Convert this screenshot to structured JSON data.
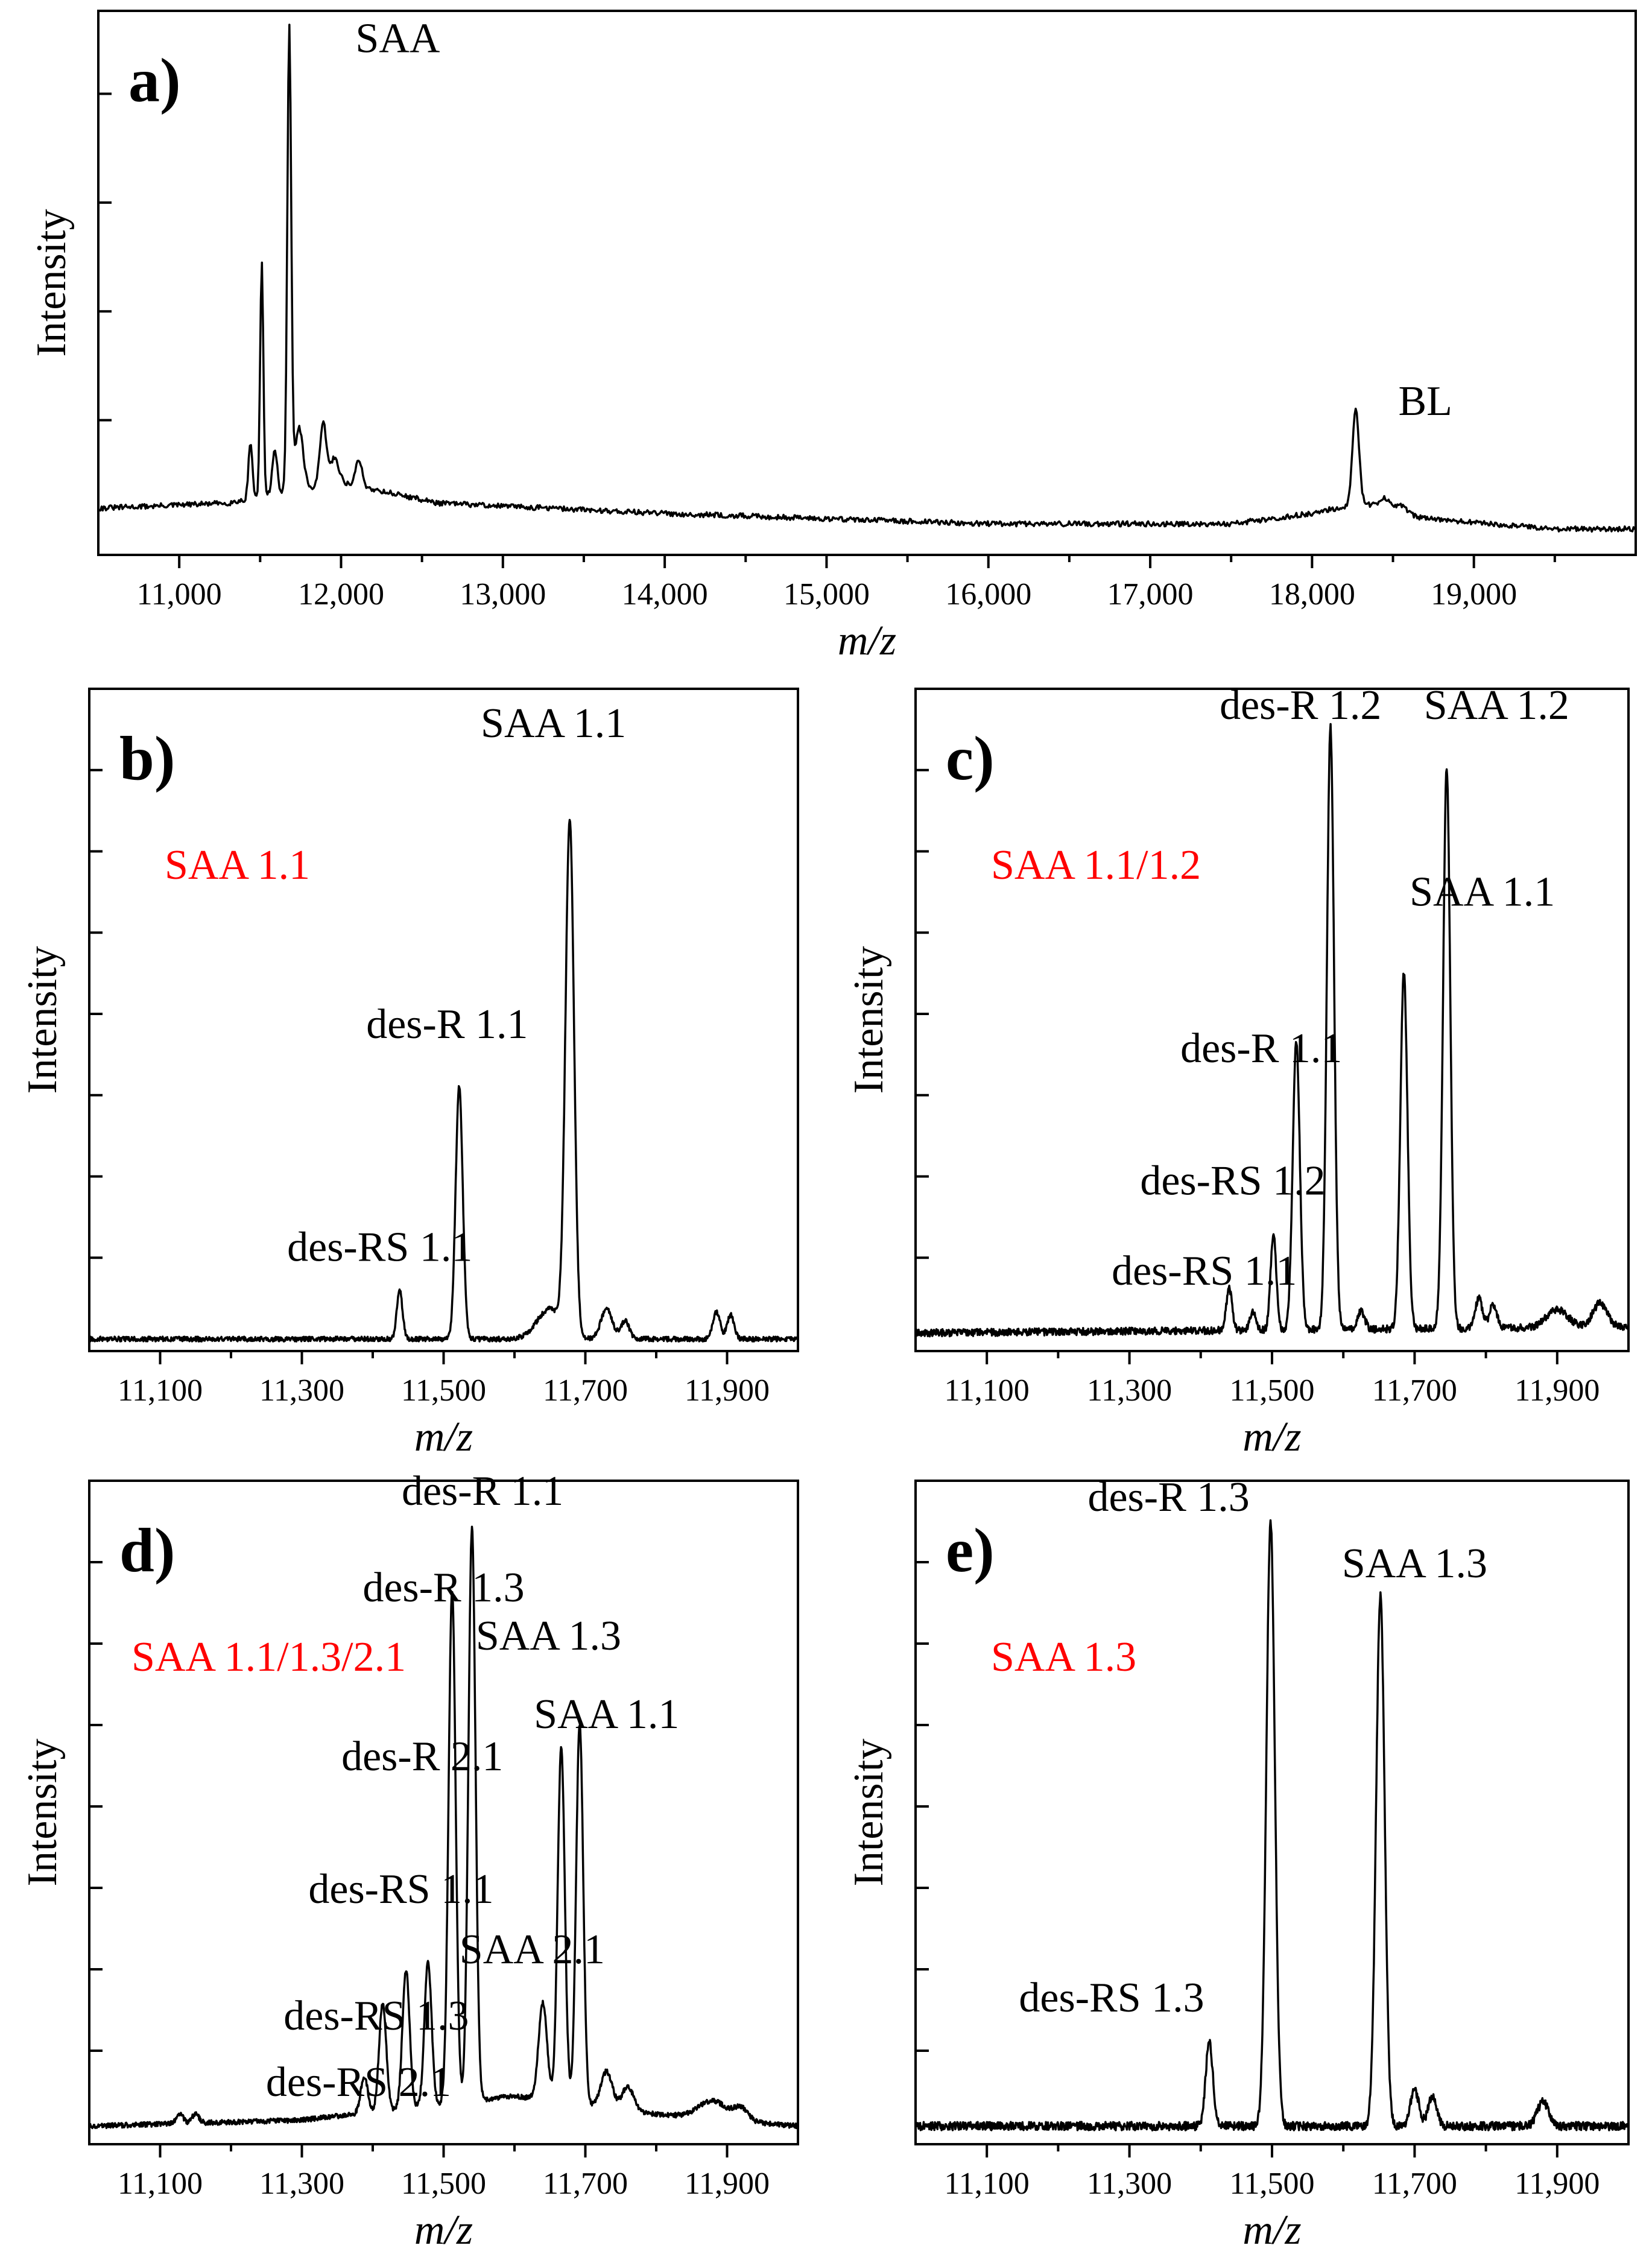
{
  "colors": {
    "sample_label": "#ff0000",
    "trace": "#000000",
    "axes": "#000000"
  },
  "chart_data": [
    {
      "panel": "a)",
      "type": "line",
      "xlabel": "m/z",
      "ylabel": "Intensity",
      "xlim": [
        10500,
        20000
      ],
      "ylim": [
        -0.05,
        1.0
      ],
      "xticks": [
        11000,
        12000,
        13000,
        14000,
        15000,
        16000,
        17000,
        18000,
        19000
      ],
      "xtick_labels": [
        "11,000",
        "12,000",
        "13,000",
        "14,000",
        "15,000",
        "16,000",
        "17,000",
        "18,000",
        "19,000"
      ],
      "baseline": [
        [
          10500,
          0.04
        ],
        [
          11300,
          0.05
        ],
        [
          12000,
          0.09
        ],
        [
          12600,
          0.05
        ],
        [
          14000,
          0.03
        ],
        [
          16000,
          0.01
        ],
        [
          17500,
          0.01
        ],
        [
          18000,
          0.03
        ],
        [
          18300,
          0.05
        ],
        [
          18700,
          0.02
        ],
        [
          19500,
          0.0
        ]
      ],
      "peaks": [
        {
          "x": 11440,
          "h": 0.11,
          "w": 12
        },
        {
          "x": 11510,
          "h": 0.45,
          "w": 10
        },
        {
          "x": 11590,
          "h": 0.09,
          "w": 15
        },
        {
          "x": 11680,
          "h": 0.9,
          "w": 12
        },
        {
          "x": 11740,
          "h": 0.12,
          "w": 25
        },
        {
          "x": 11890,
          "h": 0.12,
          "w": 20
        },
        {
          "x": 11960,
          "h": 0.05,
          "w": 25
        },
        {
          "x": 12110,
          "h": 0.05,
          "w": 20
        },
        {
          "x": 18270,
          "h": 0.18,
          "w": 20
        },
        {
          "x": 18450,
          "h": 0.02,
          "w": 35
        },
        {
          "x": 18550,
          "h": 0.015,
          "w": 30
        }
      ],
      "noise": 0.005,
      "labels": [
        {
          "text": "SAA",
          "x": 12350,
          "y": 0.92
        },
        {
          "text": "BL",
          "x": 18700,
          "y": 0.22
        }
      ],
      "sample_label": ""
    },
    {
      "panel": "b)",
      "type": "line",
      "xlabel": "m/z",
      "ylabel": "Intensity",
      "xlim": [
        11000,
        12000
      ],
      "ylim": [
        -0.02,
        1.08
      ],
      "xticks": [
        11100,
        11300,
        11500,
        11700,
        11900
      ],
      "xtick_labels": [
        "11,100",
        "11,300",
        "11,500",
        "11,700",
        "11,900"
      ],
      "baseline": [
        [
          11000,
          0.0
        ],
        [
          12000,
          0.0
        ]
      ],
      "peaks": [
        {
          "x": 11438,
          "h": 0.08,
          "w": 4
        },
        {
          "x": 11522,
          "h": 0.42,
          "w": 5
        },
        {
          "x": 11678,
          "h": 0.85,
          "w": 6
        },
        {
          "x": 11650,
          "h": 0.05,
          "w": 18
        },
        {
          "x": 11730,
          "h": 0.05,
          "w": 8
        },
        {
          "x": 11756,
          "h": 0.03,
          "w": 6
        },
        {
          "x": 11885,
          "h": 0.045,
          "w": 5
        },
        {
          "x": 11905,
          "h": 0.04,
          "w": 5
        }
      ],
      "noise": 0.004,
      "labels": [
        {
          "text": "SAA 1.1",
          "x": 11655,
          "y": 1.0
        },
        {
          "text": "des-R 1.1",
          "x": 11505,
          "y": 0.5
        },
        {
          "text": "des-RS 1.1",
          "x": 11410,
          "y": 0.13
        }
      ],
      "sample_label": "SAA 1.1"
    },
    {
      "panel": "c)",
      "type": "line",
      "xlabel": "m/z",
      "ylabel": "Intensity",
      "xlim": [
        11000,
        12000
      ],
      "ylim": [
        -0.02,
        1.08
      ],
      "xticks": [
        11100,
        11300,
        11500,
        11700,
        11900
      ],
      "xtick_labels": [
        "11,100",
        "11,300",
        "11,500",
        "11,700",
        "11,900"
      ],
      "baseline": [
        [
          11000,
          0.01
        ],
        [
          12000,
          0.02
        ]
      ],
      "peaks": [
        {
          "x": 11440,
          "h": 0.07,
          "w": 4
        },
        {
          "x": 11473,
          "h": 0.03,
          "w": 4
        },
        {
          "x": 11502,
          "h": 0.16,
          "w": 4
        },
        {
          "x": 11534,
          "h": 0.48,
          "w": 5
        },
        {
          "x": 11582,
          "h": 1.0,
          "w": 5
        },
        {
          "x": 11625,
          "h": 0.03,
          "w": 5
        },
        {
          "x": 11685,
          "h": 0.59,
          "w": 5
        },
        {
          "x": 11745,
          "h": 0.93,
          "w": 5
        },
        {
          "x": 11790,
          "h": 0.05,
          "w": 5
        },
        {
          "x": 11810,
          "h": 0.04,
          "w": 5
        },
        {
          "x": 11900,
          "h": 0.03,
          "w": 15
        },
        {
          "x": 11960,
          "h": 0.04,
          "w": 10
        }
      ],
      "noise": 0.006,
      "labels": [
        {
          "text": "des-R 1.2",
          "x": 11540,
          "y": 1.03
        },
        {
          "text": "SAA 1.2",
          "x": 11815,
          "y": 1.03
        },
        {
          "text": "SAA 1.1",
          "x": 11795,
          "y": 0.72
        },
        {
          "text": "des-R 1.1",
          "x": 11485,
          "y": 0.46
        },
        {
          "text": "des-RS 1.2",
          "x": 11445,
          "y": 0.24
        },
        {
          "text": "des-RS 1.1",
          "x": 11405,
          "y": 0.09
        }
      ],
      "sample_label": "SAA 1.1/1.2"
    },
    {
      "panel": "d)",
      "type": "line",
      "xlabel": "m/z",
      "ylabel": "Intensity",
      "xlim": [
        11000,
        12000
      ],
      "ylim": [
        -0.02,
        1.08
      ],
      "xticks": [
        11100,
        11300,
        11500,
        11700,
        11900
      ],
      "xtick_labels": [
        "11,100",
        "11,300",
        "11,500",
        "11,700",
        "11,900"
      ],
      "baseline": [
        [
          11000,
          0.01
        ],
        [
          11300,
          0.02
        ],
        [
          11450,
          0.04
        ],
        [
          11600,
          0.06
        ],
        [
          11800,
          0.03
        ],
        [
          12000,
          0.01
        ]
      ],
      "peaks": [
        {
          "x": 11128,
          "h": 0.015,
          "w": 5
        },
        {
          "x": 11150,
          "h": 0.015,
          "w": 5
        },
        {
          "x": 11388,
          "h": 0.06,
          "w": 5
        },
        {
          "x": 11414,
          "h": 0.18,
          "w": 5
        },
        {
          "x": 11447,
          "h": 0.23,
          "w": 5
        },
        {
          "x": 11478,
          "h": 0.24,
          "w": 5
        },
        {
          "x": 11512,
          "h": 0.85,
          "w": 5
        },
        {
          "x": 11540,
          "h": 0.95,
          "w": 5
        },
        {
          "x": 11640,
          "h": 0.16,
          "w": 6
        },
        {
          "x": 11666,
          "h": 0.59,
          "w": 5
        },
        {
          "x": 11692,
          "h": 0.63,
          "w": 5
        },
        {
          "x": 11730,
          "h": 0.06,
          "w": 8
        },
        {
          "x": 11760,
          "h": 0.04,
          "w": 8
        },
        {
          "x": 11880,
          "h": 0.03,
          "w": 20
        },
        {
          "x": 11920,
          "h": 0.02,
          "w": 10
        }
      ],
      "noise": 0.004,
      "labels": [
        {
          "text": "des-R 1.1",
          "x": 11555,
          "y": 1.04
        },
        {
          "text": "des-R 1.3",
          "x": 11500,
          "y": 0.88
        },
        {
          "text": "SAA 1.3",
          "x": 11648,
          "y": 0.8
        },
        {
          "text": "SAA 1.1",
          "x": 11730,
          "y": 0.67
        },
        {
          "text": "des-R 2.1",
          "x": 11470,
          "y": 0.6
        },
        {
          "text": "des-RS 1.1",
          "x": 11440,
          "y": 0.38
        },
        {
          "text": "SAA 2.1",
          "x": 11625,
          "y": 0.28
        },
        {
          "text": "des-RS 1.3",
          "x": 11405,
          "y": 0.17
        },
        {
          "text": "des-RS 2.1",
          "x": 11380,
          "y": 0.06
        }
      ],
      "sample_label": "SAA 1.1/1.3/2.1"
    },
    {
      "panel": "e)",
      "type": "line",
      "xlabel": "m/z",
      "ylabel": "Intensity",
      "xlim": [
        11000,
        12000
      ],
      "ylim": [
        -0.02,
        1.08
      ],
      "xticks": [
        11100,
        11300,
        11500,
        11700,
        11900
      ],
      "xtick_labels": [
        "11,100",
        "11,300",
        "11,500",
        "11,700",
        "11,900"
      ],
      "baseline": [
        [
          11000,
          0.01
        ],
        [
          12000,
          0.01
        ]
      ],
      "peaks": [
        {
          "x": 11412,
          "h": 0.14,
          "w": 5
        },
        {
          "x": 11498,
          "h": 1.0,
          "w": 6
        },
        {
          "x": 11652,
          "h": 0.88,
          "w": 6
        },
        {
          "x": 11700,
          "h": 0.06,
          "w": 6
        },
        {
          "x": 11725,
          "h": 0.05,
          "w": 6
        },
        {
          "x": 11880,
          "h": 0.04,
          "w": 8
        }
      ],
      "noise": 0.007,
      "labels": [
        {
          "text": "des-R 1.3",
          "x": 11355,
          "y": 1.03
        },
        {
          "text": "SAA 1.3",
          "x": 11700,
          "y": 0.92
        },
        {
          "text": "des-RS 1.3",
          "x": 11275,
          "y": 0.2
        }
      ],
      "sample_label": "SAA 1.3"
    }
  ]
}
